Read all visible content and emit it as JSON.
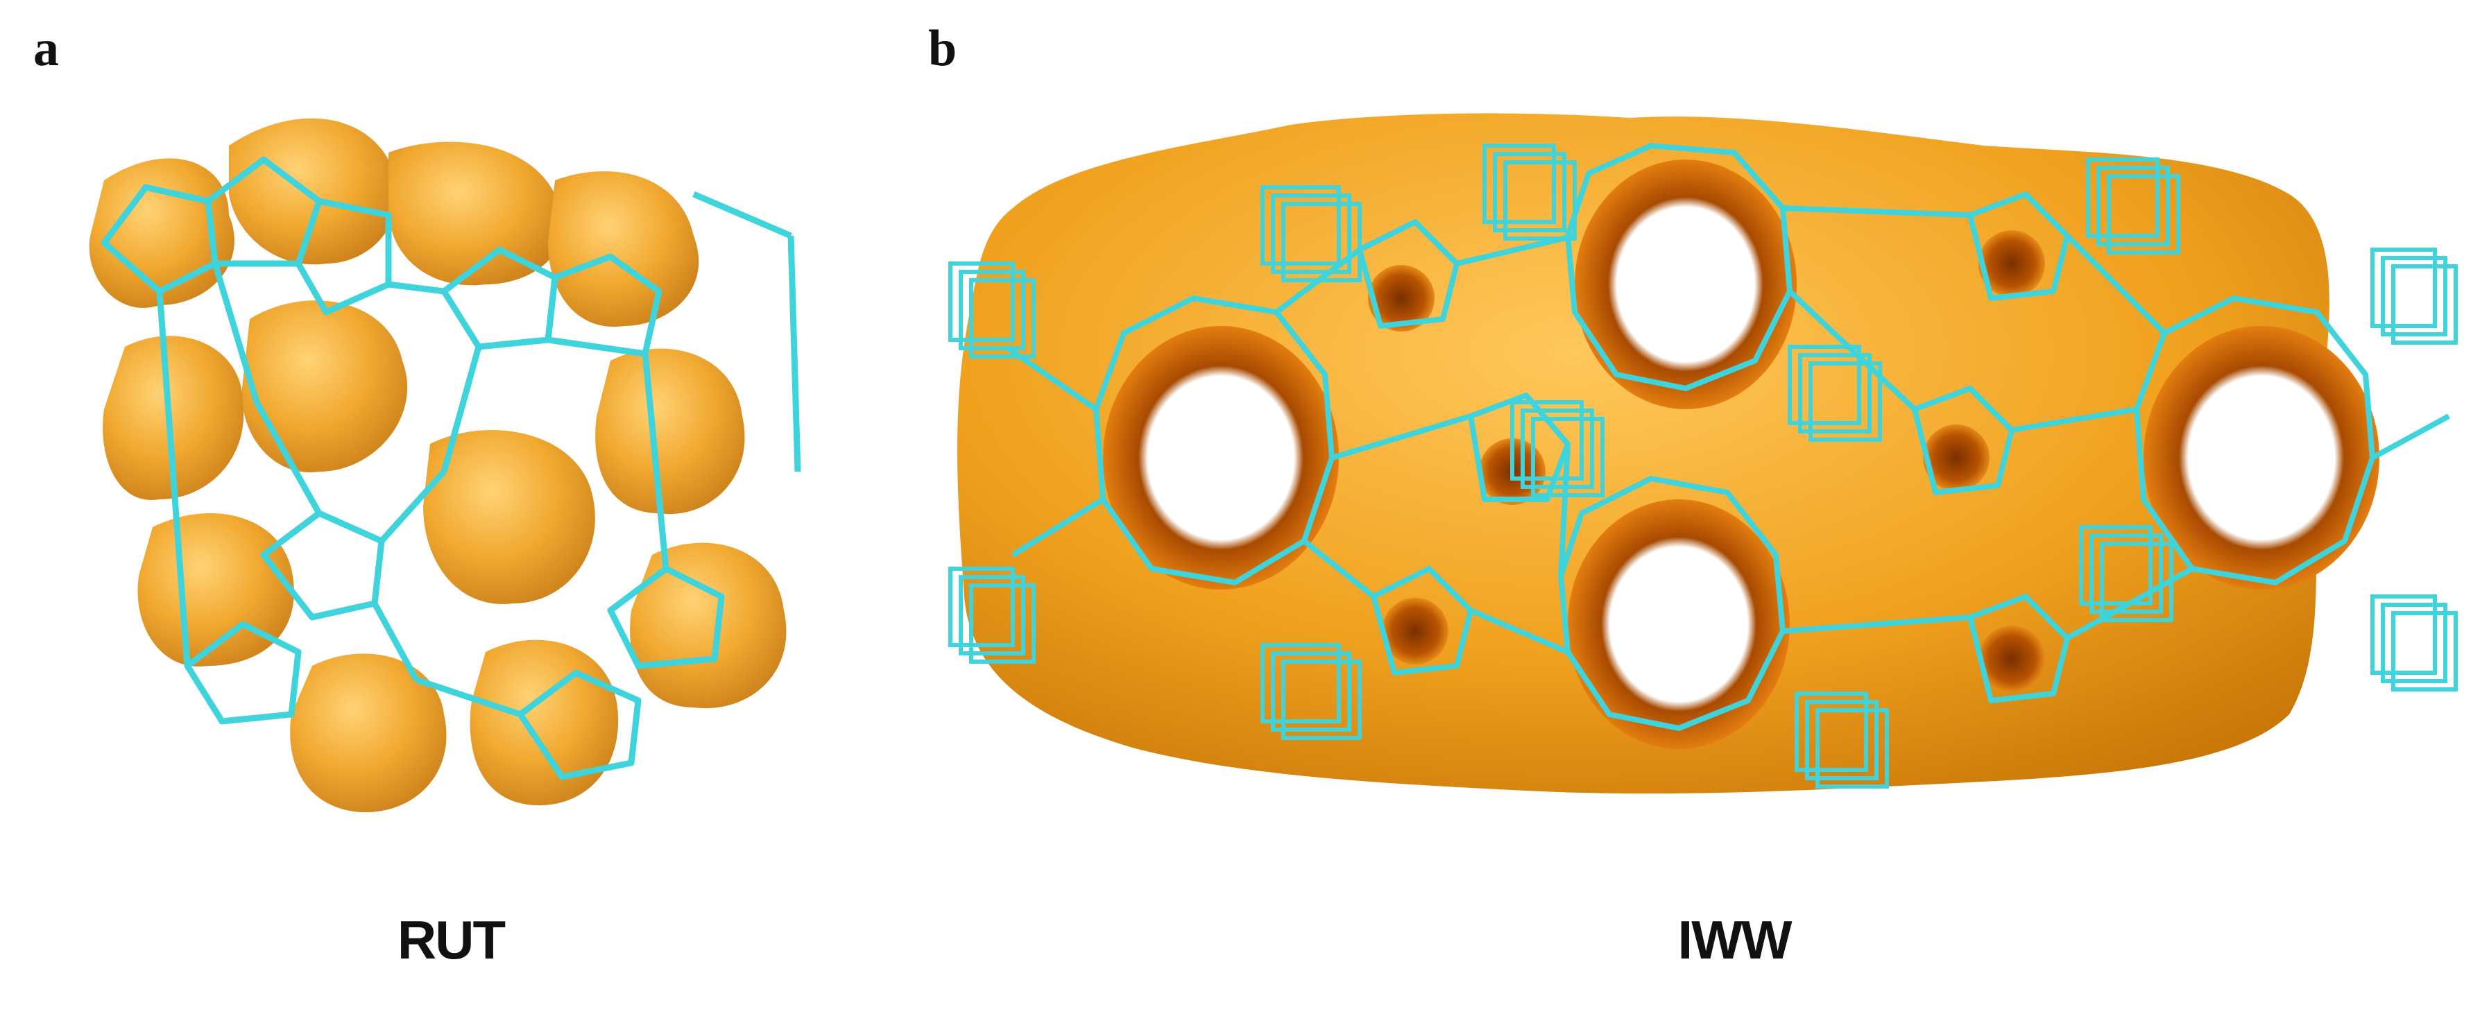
{
  "panels": [
    {
      "letter": "a",
      "caption": "RUT"
    },
    {
      "letter": "b",
      "caption": "IWW"
    }
  ],
  "colors": {
    "pore_surface": "#f0a11e",
    "pore_surface_dark": "#c8700a",
    "pore_interior": "#c25a00",
    "framework": "#3fd3dc",
    "background": "#ffffff"
  }
}
